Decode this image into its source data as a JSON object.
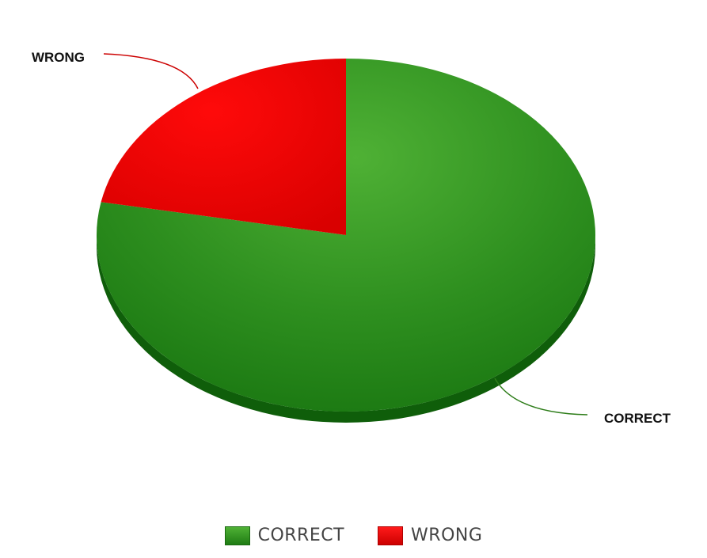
{
  "chart_data": {
    "type": "pie",
    "title": "",
    "labels": [
      "CORRECT",
      "WRONG"
    ],
    "values": [
      78,
      22
    ],
    "colors": [
      "#2e8b1e",
      "#e00000"
    ],
    "legend_position": "bottom",
    "three_d": true
  },
  "legend": {
    "items": [
      {
        "label": "CORRECT",
        "color": "#2e8b1e"
      },
      {
        "label": "WRONG",
        "color": "#e00000"
      }
    ]
  }
}
